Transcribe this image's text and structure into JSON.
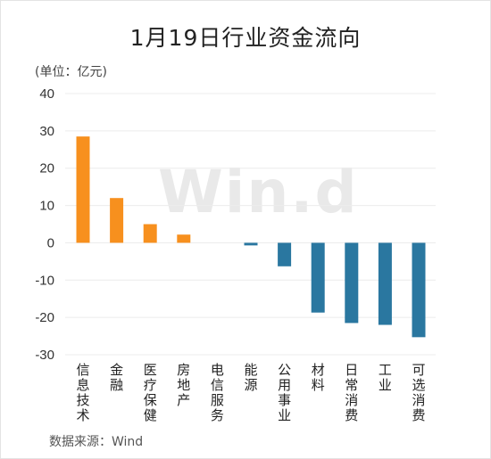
{
  "chart_data": {
    "type": "bar",
    "title": "1月19日行业资金流向",
    "unit_label": "(单位：亿元)",
    "source": "数据来源：Wind",
    "watermark": "Win.d",
    "categories": [
      "信息技术",
      "金融",
      "医疗保健",
      "房地产",
      "电信服务",
      "能源",
      "公用事业",
      "材料",
      "日常消费",
      "工业",
      "可选消费"
    ],
    "values": [
      28.5,
      12.0,
      5.0,
      2.2,
      0.0,
      -0.7,
      -6.3,
      -18.7,
      -21.5,
      -22.0,
      -25.3
    ],
    "ylim": [
      -30,
      40
    ],
    "yticks": [
      40,
      30,
      20,
      10,
      0,
      -10,
      -20,
      -30
    ],
    "grid": true,
    "colors": {
      "positive": "#F7901E",
      "negative": "#2A77A0"
    }
  }
}
